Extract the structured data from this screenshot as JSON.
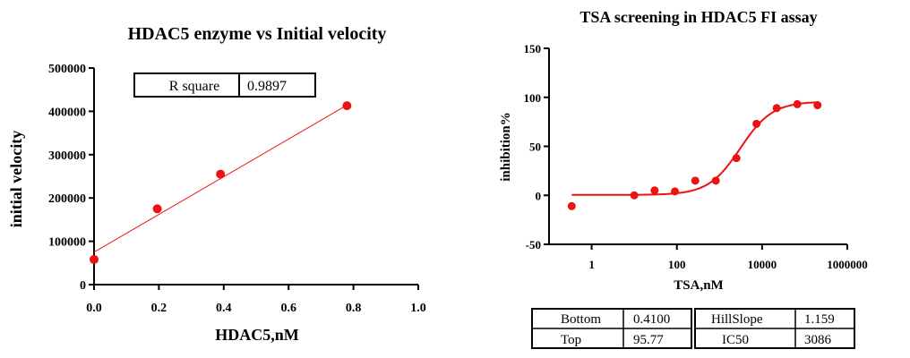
{
  "chart_data": [
    {
      "type": "scatter",
      "title": "HDAC5 enzyme vs Initial velocity",
      "xlabel": "HDAC5,nM",
      "ylabel": "initial velocity",
      "xlim": [
        0.0,
        1.0
      ],
      "ylim": [
        0,
        500000
      ],
      "x_ticks": [
        0.0,
        0.2,
        0.4,
        0.6,
        0.8,
        1.0
      ],
      "x_tick_labels": [
        "0.0",
        "0.2",
        "0.4",
        "0.6",
        "0.8",
        "1.0"
      ],
      "y_ticks": [
        0,
        100000,
        200000,
        300000,
        400000,
        500000
      ],
      "y_tick_labels": [
        "0",
        "100000",
        "200000",
        "300000",
        "400000",
        "500000"
      ],
      "series": [
        {
          "name": "data",
          "x": [
            0.0,
            0.195,
            0.39,
            0.78
          ],
          "y": [
            58000,
            175000,
            255000,
            413000
          ]
        }
      ],
      "fit": {
        "type": "linear",
        "x_range": [
          0.0,
          0.78
        ],
        "slope": 435000,
        "intercept": 75000
      },
      "stats": {
        "label": "R square",
        "value": "0.9897"
      },
      "colors": {
        "points": "#ee1111",
        "line": "#ee1111"
      }
    },
    {
      "type": "scatter",
      "title": "TSA screening in HDAC5 FI assay",
      "xlabel": "TSA,nM",
      "ylabel": "inhibition%",
      "xscale": "log",
      "xlim": [
        0.1,
        1000000
      ],
      "ylim": [
        -50,
        150
      ],
      "x_ticks": [
        1,
        100,
        10000,
        1000000
      ],
      "x_tick_labels": [
        "1",
        "100",
        "10000",
        "1000000"
      ],
      "y_ticks": [
        -50,
        0,
        50,
        100,
        150
      ],
      "y_tick_labels": [
        "-50",
        "0",
        "50",
        "100",
        "150"
      ],
      "series": [
        {
          "name": "data",
          "x": [
            0.34,
            10,
            30,
            90,
            270,
            820,
            2500,
            7400,
            22000,
            67000,
            200000
          ],
          "y": [
            -11,
            0,
            5,
            4,
            15,
            15,
            38,
            73,
            89,
            93,
            92
          ]
        }
      ],
      "fit": {
        "type": "4PL",
        "bottom": 0.41,
        "top": 95.77,
        "hillslope": 1.159,
        "ic50": 3086,
        "x_range": [
          0.34,
          200000
        ]
      },
      "table": [
        [
          "Bottom",
          "0.4100",
          "HillSlope",
          "1.159"
        ],
        [
          "Top",
          "95.77",
          "IC50",
          "3086"
        ]
      ],
      "colors": {
        "points": "#ee1111",
        "line": "#ee1111"
      }
    }
  ]
}
